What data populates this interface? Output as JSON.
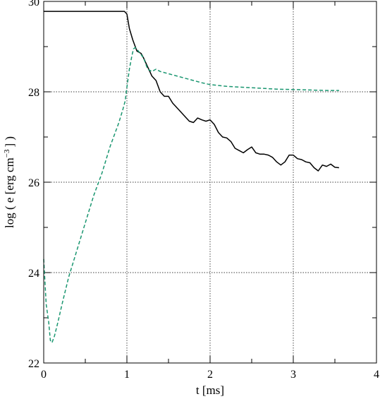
{
  "chart_data": {
    "type": "line",
    "title": "",
    "xlabel": "t [ms]",
    "ylabel": {
      "prefix": "log ( e [erg cm",
      "superscript": "−3",
      "suffix": "] )"
    },
    "xlim": [
      0,
      4
    ],
    "ylim": [
      22,
      30
    ],
    "x_ticks": [
      0,
      1,
      2,
      3,
      4
    ],
    "y_ticks": [
      22,
      24,
      26,
      28,
      30
    ],
    "grid": "dotted lines at x = 1, 2, 3 and y = 24, 26, 28",
    "grid_x": [
      1,
      2,
      3
    ],
    "grid_y": [
      24,
      26,
      28
    ],
    "legend": "none",
    "series": [
      {
        "style": "solid",
        "color": "#000000",
        "x": [
          0.0,
          0.3,
          0.6,
          0.9,
          0.97,
          1.0,
          1.03,
          1.07,
          1.12,
          1.17,
          1.2,
          1.25,
          1.3,
          1.35,
          1.4,
          1.45,
          1.5,
          1.55,
          1.6,
          1.65,
          1.7,
          1.75,
          1.8,
          1.85,
          1.9,
          1.95,
          2.0,
          2.05,
          2.1,
          2.15,
          2.2,
          2.25,
          2.3,
          2.35,
          2.4,
          2.45,
          2.5,
          2.55,
          2.6,
          2.65,
          2.7,
          2.75,
          2.8,
          2.85,
          2.9,
          2.95,
          3.0,
          3.05,
          3.1,
          3.15,
          3.2,
          3.25,
          3.3,
          3.35,
          3.4,
          3.45,
          3.5,
          3.55
        ],
        "y": [
          29.78,
          29.78,
          29.78,
          29.78,
          29.78,
          29.72,
          29.4,
          29.15,
          28.9,
          28.85,
          28.75,
          28.55,
          28.35,
          28.25,
          28.0,
          27.9,
          27.9,
          27.75,
          27.65,
          27.55,
          27.45,
          27.35,
          27.32,
          27.42,
          27.38,
          27.35,
          27.38,
          27.28,
          27.1,
          27.0,
          26.98,
          26.9,
          26.75,
          26.7,
          26.65,
          26.72,
          26.78,
          26.65,
          26.62,
          26.62,
          26.6,
          26.55,
          26.45,
          26.38,
          26.45,
          26.6,
          26.6,
          26.52,
          26.5,
          26.45,
          26.43,
          26.32,
          26.25,
          26.38,
          26.35,
          26.4,
          26.33,
          26.32
        ]
      },
      {
        "style": "dashed",
        "color": "#1a9670",
        "x": [
          0.0,
          0.03,
          0.06,
          0.08,
          0.1,
          0.13,
          0.17,
          0.22,
          0.3,
          0.4,
          0.5,
          0.6,
          0.7,
          0.8,
          0.85,
          0.9,
          0.95,
          0.98,
          1.0,
          1.03,
          1.06,
          1.08,
          1.1,
          1.13,
          1.16,
          1.2,
          1.25,
          1.3,
          1.35,
          1.4,
          1.5,
          1.6,
          1.7,
          1.8,
          1.9,
          2.0,
          2.2,
          2.4,
          2.6,
          2.8,
          3.0,
          3.2,
          3.4,
          3.55
        ],
        "y": [
          24.3,
          23.3,
          22.9,
          22.5,
          22.45,
          22.6,
          22.9,
          23.3,
          23.9,
          24.5,
          25.1,
          25.7,
          26.2,
          26.8,
          27.05,
          27.3,
          27.6,
          27.8,
          28.1,
          28.5,
          28.8,
          28.95,
          28.98,
          28.92,
          28.85,
          28.75,
          28.5,
          28.45,
          28.5,
          28.45,
          28.4,
          28.35,
          28.3,
          28.25,
          28.2,
          28.16,
          28.12,
          28.1,
          28.08,
          28.06,
          28.05,
          28.04,
          28.03,
          28.03
        ]
      }
    ]
  }
}
